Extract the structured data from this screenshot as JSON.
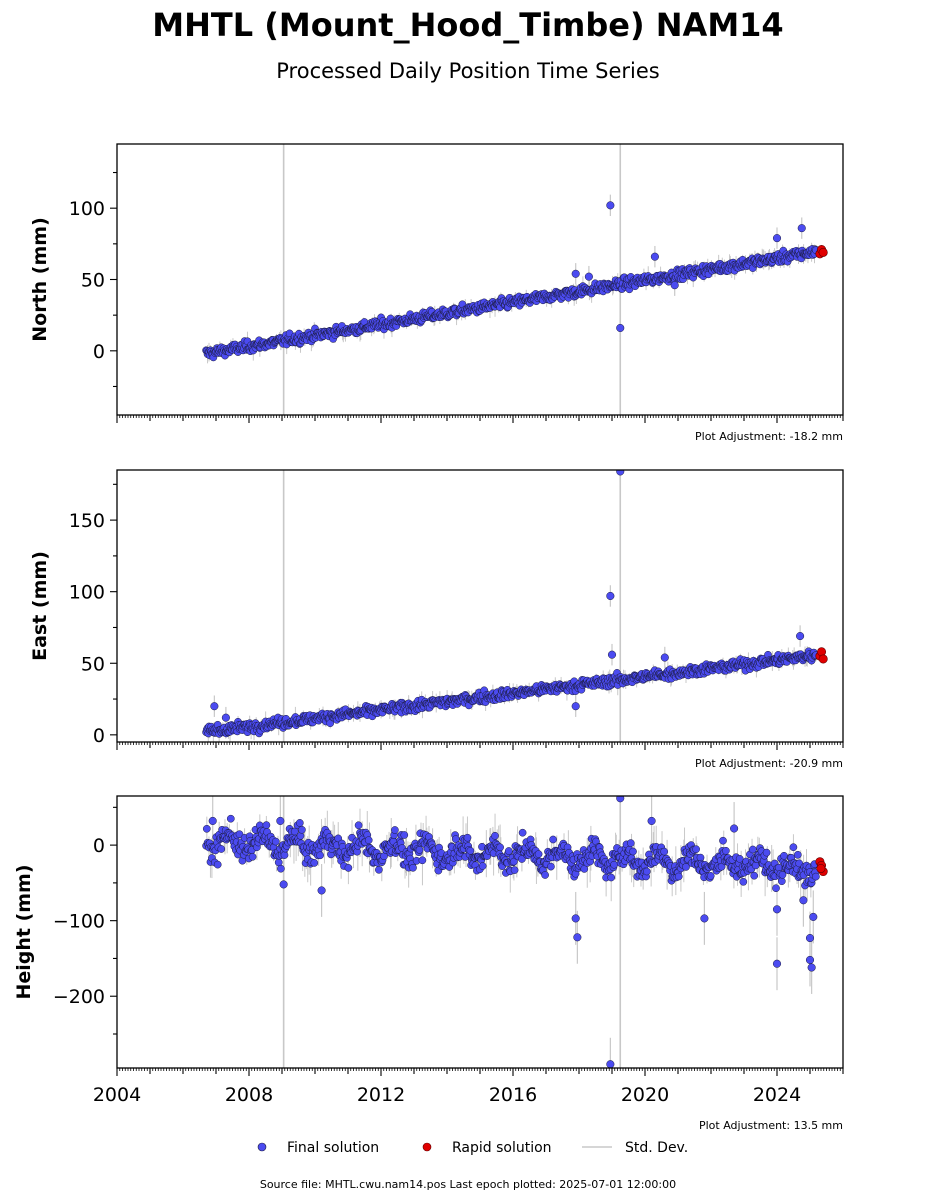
{
  "header": {
    "title": "MHTL (Mount_Hood_Timbe) NAM14",
    "subtitle": "Processed Daily Position Time Series"
  },
  "colors": {
    "final": "#4b4bf0",
    "rapid": "#e00000",
    "stddev": "#c8c8c8",
    "marker_edge": "#1a1a3a"
  },
  "footer": {
    "source": "Source file: MHTL.cwu.nam14.pos  Last epoch plotted: 2025-07-01 12:00:00"
  },
  "legend": {
    "final": "Final solution",
    "rapid": "Rapid solution",
    "std": "Std. Dev."
  },
  "chart_data": [
    {
      "type": "scatter",
      "ylabel": "North (mm)",
      "adjustment": "Plot Adjustment: -18.2 mm",
      "xlim": [
        2004.0,
        2026.0
      ],
      "ylim": [
        -45,
        145
      ],
      "yticks": [
        0,
        50,
        100
      ],
      "minor_step": 25,
      "xticks": [
        2004,
        2008,
        2012,
        2016,
        2020,
        2024
      ],
      "show_xtick_labels": false,
      "trend": [
        [
          2006.7,
          -2
        ],
        [
          2025.3,
          70
        ]
      ],
      "noise": 3,
      "start": 2006.7,
      "end": 2025.2,
      "vlines": [
        2009.05,
        2019.25
      ],
      "outliers": [
        [
          2018.95,
          102
        ],
        [
          2019.25,
          16
        ],
        [
          2017.9,
          54
        ],
        [
          2018.3,
          52
        ],
        [
          2020.3,
          66
        ],
        [
          2020.9,
          46
        ],
        [
          2024.0,
          79
        ],
        [
          2024.75,
          86
        ]
      ],
      "rapid": [
        [
          2025.3,
          68
        ],
        [
          2025.35,
          71
        ],
        [
          2025.4,
          69
        ]
      ]
    },
    {
      "type": "scatter",
      "ylabel": "East (mm)",
      "adjustment": "Plot Adjustment: -20.9 mm",
      "xlim": [
        2004.0,
        2026.0
      ],
      "ylim": [
        -5,
        185
      ],
      "yticks": [
        0,
        50,
        100,
        150
      ],
      "minor_step": 25,
      "xticks": [
        2004,
        2008,
        2012,
        2016,
        2020,
        2024
      ],
      "show_xtick_labels": false,
      "trend": [
        [
          2006.7,
          2
        ],
        [
          2025.3,
          56
        ]
      ],
      "noise": 3,
      "start": 2006.7,
      "end": 2025.2,
      "vlines": [
        2009.05,
        2019.25
      ],
      "outliers": [
        [
          2006.95,
          20
        ],
        [
          2007.3,
          12
        ],
        [
          2018.95,
          97
        ],
        [
          2019.0,
          56
        ],
        [
          2019.25,
          184
        ],
        [
          2017.9,
          20
        ],
        [
          2020.6,
          54
        ],
        [
          2024.7,
          69
        ]
      ],
      "rapid": [
        [
          2025.3,
          55
        ],
        [
          2025.35,
          58
        ],
        [
          2025.4,
          53
        ]
      ]
    },
    {
      "type": "scatter",
      "ylabel": "Height (mm)",
      "adjustment": "Plot Adjustment: 13.5 mm",
      "xlim": [
        2004.0,
        2026.0
      ],
      "ylim": [
        -295,
        65
      ],
      "yticks": [
        -200,
        -100,
        0
      ],
      "minor_step": 50,
      "xticks": [
        2004,
        2008,
        2012,
        2016,
        2020,
        2024
      ],
      "show_xtick_labels": true,
      "trend": [
        [
          2006.7,
          5
        ],
        [
          2025.3,
          -30
        ]
      ],
      "noise": 14,
      "seasonal": 12,
      "start": 2006.7,
      "end": 2025.2,
      "vlines": [
        2009.05,
        2019.25
      ],
      "outliers": [
        [
          2006.9,
          32
        ],
        [
          2008.95,
          32
        ],
        [
          2009.05,
          -52
        ],
        [
          2010.2,
          -60
        ],
        [
          2017.9,
          -97
        ],
        [
          2017.95,
          -122
        ],
        [
          2018.95,
          -290
        ],
        [
          2019.25,
          62
        ],
        [
          2020.2,
          32
        ],
        [
          2021.8,
          -97
        ],
        [
          2022.7,
          22
        ],
        [
          2024.0,
          -157
        ],
        [
          2024.0,
          -85
        ],
        [
          2025.0,
          -123
        ],
        [
          2025.0,
          -152
        ],
        [
          2025.05,
          -162
        ],
        [
          2025.1,
          -95
        ],
        [
          2024.8,
          -73
        ]
      ],
      "rapid": [
        [
          2025.3,
          -22
        ],
        [
          2025.35,
          -27
        ],
        [
          2025.4,
          -35
        ],
        [
          2025.33,
          -31
        ]
      ]
    }
  ]
}
